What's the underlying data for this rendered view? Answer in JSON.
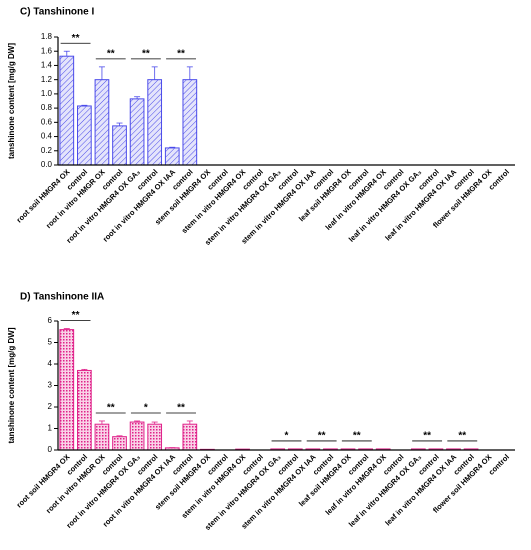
{
  "chart_data": [
    {
      "type": "bar",
      "title": "C) Tanshinone I",
      "ylabel": "tanshinone content [mg/g DW]",
      "categories": [
        "root soil HMGR4 OX",
        "control",
        "root in vitro HMGR OX",
        "control",
        "root in vitro HMGR4 OX GA₃",
        "control",
        "root in vitro HMGR4 OX IAA",
        "control",
        "stem soil HMGR4 OX",
        "control",
        "stem in vitro HMGR4 OX",
        "control",
        "stem in vitro HMGR4 OX GA₃",
        "control",
        "stem in vitro HMGR4 OX IAA",
        "control",
        "leaf soil HMGR4 OX",
        "control",
        "leaf in vitro HMGR4 OX",
        "control",
        "leaf in vitro HMGR4 OX GA₃",
        "control",
        "leaf in vitro HMGR4 OX IAA",
        "control",
        "flower soil HMGR4 OX",
        "control"
      ],
      "values": [
        1.53,
        0.83,
        1.2,
        0.55,
        0.93,
        1.2,
        0.24,
        1.2,
        0,
        0,
        0,
        0,
        0,
        0,
        0,
        0,
        0,
        0,
        0,
        0,
        0,
        0,
        0,
        0,
        0,
        0
      ],
      "errors": [
        0.07,
        0.01,
        0.18,
        0.04,
        0.03,
        0.18,
        0.01,
        0.18,
        0,
        0,
        0,
        0,
        0,
        0,
        0,
        0,
        0,
        0,
        0,
        0,
        0,
        0,
        0,
        0,
        0,
        0
      ],
      "color": "#4b4bea",
      "ylim": [
        0,
        1.8
      ],
      "yticks": [
        {
          "value": 0,
          "label": "0.0"
        },
        0.2,
        0.4,
        0.6,
        0.8,
        {
          "value": 1,
          "label": "1.0"
        },
        1.2,
        1.4,
        1.6,
        1.8
      ],
      "annotations": [
        {
          "text": "**",
          "between": [
            0,
            1
          ]
        },
        {
          "text": "**",
          "between": [
            2,
            3
          ]
        },
        {
          "text": "**",
          "between": [
            4,
            5
          ]
        },
        {
          "text": "**",
          "between": [
            6,
            7
          ]
        }
      ]
    },
    {
      "type": "bar",
      "title": "D) Tanshinone IIA",
      "ylabel": "tanshinone content [mg/g DW]",
      "categories": [
        "root soil HMGR4 OX",
        "control",
        "root in vitro HMGR OX",
        "control",
        "root in vitro HMGR4 OX GA₃",
        "control",
        "root in vitro HMGR4 OX IAA",
        "control",
        "stem soil HMGR4 OX",
        "control",
        "stem in vitro HMGR4 OX",
        "control",
        "stem in vitro HMGR4 OX GA₃",
        "control",
        "stem in vitro HMGR4 OX IAA",
        "control",
        "leaf soil HMGR4 OX",
        "control",
        "leaf in vitro HMGR4 OX",
        "control",
        "leaf in vitro HMGR4 OX GA₃",
        "control",
        "leaf in vitro HMGR4 OX IAA",
        "control",
        "flower soil HMGR4 OX",
        "control"
      ],
      "values": [
        5.6,
        3.7,
        1.2,
        0.62,
        1.3,
        1.2,
        0.1,
        1.2,
        0.03,
        0,
        0.04,
        0,
        0.05,
        0.05,
        0.05,
        0.05,
        0.05,
        0.05,
        0.05,
        0,
        0.05,
        0.05,
        0.05,
        0.05,
        0,
        0
      ],
      "errors": [
        0.05,
        0.05,
        0.15,
        0.04,
        0.05,
        0.1,
        0.01,
        0.15,
        0,
        0,
        0,
        0,
        0,
        0,
        0,
        0,
        0,
        0,
        0,
        0,
        0,
        0,
        0,
        0,
        0,
        0
      ],
      "color": "#e0218a",
      "ylim": [
        0,
        6
      ],
      "yticks": [
        0,
        1,
        2,
        3,
        4,
        5,
        6
      ],
      "annotations": [
        {
          "text": "**",
          "between": [
            0,
            1
          ]
        },
        {
          "text": "**",
          "between": [
            2,
            3
          ]
        },
        {
          "text": "*",
          "between": [
            4,
            5
          ]
        },
        {
          "text": "**",
          "between": [
            6,
            7
          ]
        },
        {
          "text": "*",
          "between": [
            12,
            13
          ]
        },
        {
          "text": "**",
          "between": [
            14,
            15
          ]
        },
        {
          "text": "**",
          "between": [
            16,
            17
          ]
        },
        {
          "text": "**",
          "between": [
            20,
            21
          ]
        },
        {
          "text": "**",
          "between": [
            22,
            23
          ]
        }
      ]
    }
  ]
}
